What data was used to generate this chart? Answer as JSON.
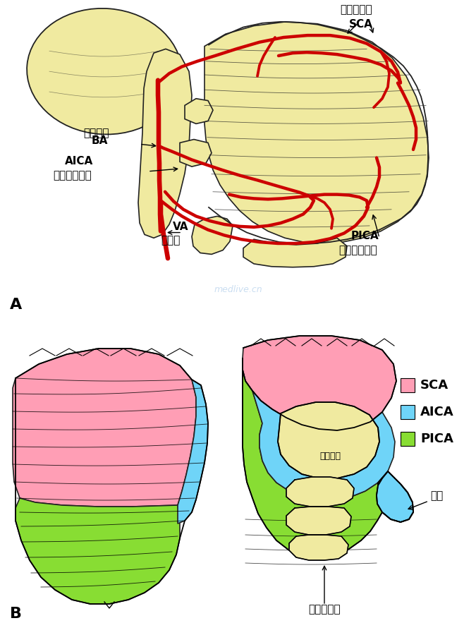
{
  "bg_color": "#FFFFFF",
  "cerebellum_fill": "#F0EAA0",
  "cerebellum_stroke": "#222222",
  "artery_color": "#CC0000",
  "SCA_color": "#FF9EB5",
  "AICA_color": "#6FD4F8",
  "PICA_color": "#88DD33",
  "watermark": "medlive.cn",
  "legend": [
    {
      "label": "SCA",
      "color": "#FF9EB5"
    },
    {
      "label": "AICA",
      "color": "#6FD4F8"
    },
    {
      "label": "PICA",
      "color": "#88DD33"
    }
  ]
}
